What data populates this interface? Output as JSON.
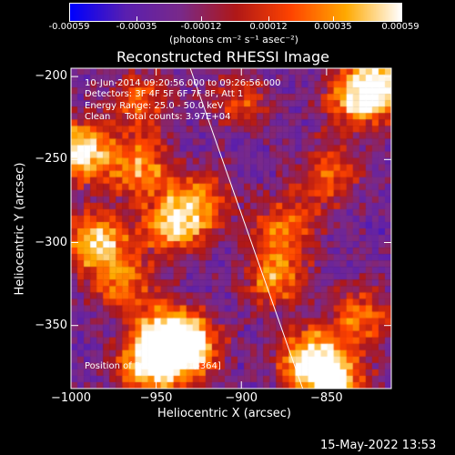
{
  "colorbar": {
    "ticks": [
      "-0.00059",
      "-0.00035",
      "-0.00012",
      "0.00012",
      "0.00035",
      "0.00059"
    ],
    "tick_values": [
      -0.00059,
      -0.00035,
      -0.00012,
      0.00012,
      0.00035,
      0.00059
    ],
    "unit_label": "(photons cm⁻² s⁻¹ asec⁻²)",
    "colors": [
      "#0000ff",
      "#5a1fb0",
      "#7a2a8a",
      "#b01818",
      "#ff4400",
      "#ffaa00",
      "#ffffff"
    ]
  },
  "annotations": {
    "time_range": "10-Jun-2014 09:20:56.000 to 09:26:56.000",
    "detectors": "Detectors: 3F 4F 5F 6F 7F 8F, Att 1",
    "energy": "Energy Range: 25.0 - 50.0 keV",
    "method": "Clean     Total counts: 3.97E+04",
    "peak": "Position of Peak = [-931,-364]"
  },
  "footer_date": "15-May-2022 13:53",
  "chart_data": {
    "type": "heatmap",
    "title": "Reconstructed RHESSI Image",
    "xlabel": "Heliocentric X (arcsec)",
    "ylabel": "Heliocentric Y (arcsec)",
    "xlim": [
      -1000,
      -812
    ],
    "ylim": [
      -388,
      -195
    ],
    "x_ticks": [
      -1000,
      -950,
      -900,
      -850
    ],
    "y_ticks": [
      -200,
      -250,
      -300,
      -350
    ],
    "x_tick_labels": [
      "−1000",
      "−950",
      "−900",
      "−850"
    ],
    "y_tick_labels": [
      "−200",
      "−250",
      "−300",
      "−350"
    ],
    "limb_line": [
      [
        -930,
        -195
      ],
      [
        -864,
        -388
      ]
    ],
    "bright_regions": [
      {
        "x": -995,
        "y": -245,
        "level": 0.95
      },
      {
        "x": -985,
        "y": -300,
        "level": 0.85
      },
      {
        "x": -960,
        "y": -255,
        "level": 0.7
      },
      {
        "x": -940,
        "y": -290,
        "level": 0.75
      },
      {
        "x": -925,
        "y": -275,
        "level": 0.6
      },
      {
        "x": -945,
        "y": -355,
        "level": 0.8
      },
      {
        "x": -931,
        "y": -364,
        "level": 1.0
      },
      {
        "x": -955,
        "y": -375,
        "level": 0.85
      },
      {
        "x": -880,
        "y": -320,
        "level": 0.7
      },
      {
        "x": -875,
        "y": -290,
        "level": 0.55
      },
      {
        "x": -860,
        "y": -370,
        "level": 0.9
      },
      {
        "x": -845,
        "y": -385,
        "level": 0.85
      },
      {
        "x": -850,
        "y": -260,
        "level": 0.55
      },
      {
        "x": -835,
        "y": -215,
        "level": 0.6
      },
      {
        "x": -820,
        "y": -205,
        "level": 0.9
      },
      {
        "x": -830,
        "y": -345,
        "level": 0.6
      },
      {
        "x": -900,
        "y": -215,
        "level": 0.45
      },
      {
        "x": -960,
        "y": -215,
        "level": 0.5
      },
      {
        "x": -970,
        "y": -325,
        "level": 0.55
      }
    ]
  }
}
